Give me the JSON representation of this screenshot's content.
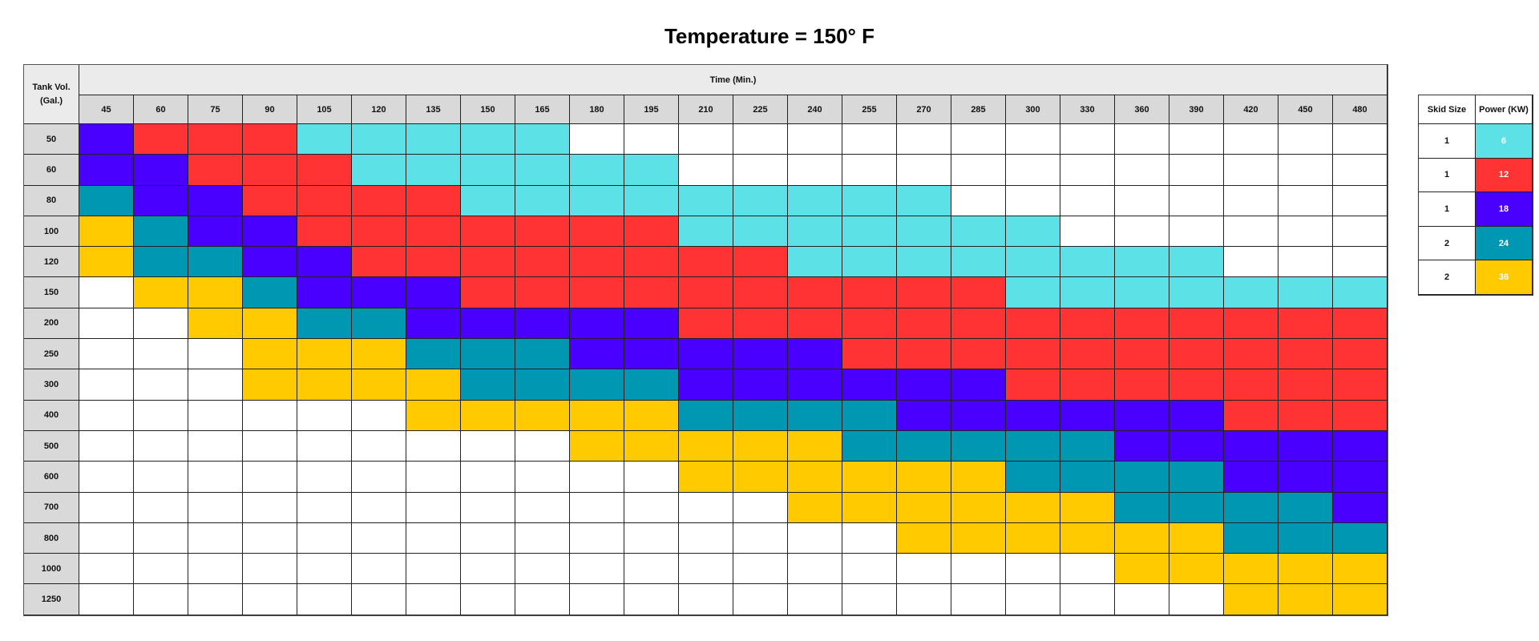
{
  "chart_data": {
    "type": "heatmap",
    "title": "Temperature = 150° F",
    "row_header": [
      "Tank Vol.",
      "(Gal.)"
    ],
    "col_header": "Time (Min.)",
    "columns": [
      45,
      60,
      75,
      90,
      105,
      120,
      135,
      150,
      165,
      180,
      195,
      210,
      225,
      240,
      255,
      270,
      285,
      300,
      330,
      360,
      390,
      420,
      450,
      480
    ],
    "rows": [
      {
        "tank": 50,
        "power_kw": [
          18,
          12,
          12,
          12,
          6,
          6,
          6,
          6,
          6,
          0,
          0,
          0,
          0,
          0,
          0,
          0,
          0,
          0,
          0,
          0,
          0,
          0,
          0,
          0
        ]
      },
      {
        "tank": 60,
        "power_kw": [
          18,
          18,
          12,
          12,
          12,
          6,
          6,
          6,
          6,
          6,
          6,
          0,
          0,
          0,
          0,
          0,
          0,
          0,
          0,
          0,
          0,
          0,
          0,
          0
        ]
      },
      {
        "tank": 80,
        "power_kw": [
          24,
          18,
          18,
          12,
          12,
          12,
          12,
          6,
          6,
          6,
          6,
          6,
          6,
          6,
          6,
          6,
          0,
          0,
          0,
          0,
          0,
          0,
          0,
          0
        ]
      },
      {
        "tank": 100,
        "power_kw": [
          36,
          24,
          18,
          18,
          12,
          12,
          12,
          12,
          12,
          12,
          12,
          6,
          6,
          6,
          6,
          6,
          6,
          6,
          0,
          0,
          0,
          0,
          0,
          0
        ]
      },
      {
        "tank": 120,
        "power_kw": [
          36,
          24,
          24,
          18,
          18,
          12,
          12,
          12,
          12,
          12,
          12,
          12,
          12,
          6,
          6,
          6,
          6,
          6,
          6,
          6,
          6,
          0,
          0,
          0
        ]
      },
      {
        "tank": 150,
        "power_kw": [
          0,
          36,
          36,
          24,
          18,
          18,
          18,
          12,
          12,
          12,
          12,
          12,
          12,
          12,
          12,
          12,
          12,
          6,
          6,
          6,
          6,
          6,
          6,
          6
        ]
      },
      {
        "tank": 200,
        "power_kw": [
          0,
          0,
          36,
          36,
          24,
          24,
          18,
          18,
          18,
          18,
          18,
          12,
          12,
          12,
          12,
          12,
          12,
          12,
          12,
          12,
          12,
          12,
          12,
          12
        ]
      },
      {
        "tank": 250,
        "power_kw": [
          0,
          0,
          0,
          36,
          36,
          36,
          24,
          24,
          24,
          18,
          18,
          18,
          18,
          18,
          12,
          12,
          12,
          12,
          12,
          12,
          12,
          12,
          12,
          12
        ]
      },
      {
        "tank": 300,
        "power_kw": [
          0,
          0,
          0,
          36,
          36,
          36,
          36,
          24,
          24,
          24,
          24,
          18,
          18,
          18,
          18,
          18,
          18,
          12,
          12,
          12,
          12,
          12,
          12,
          12
        ]
      },
      {
        "tank": 400,
        "power_kw": [
          0,
          0,
          0,
          0,
          0,
          0,
          36,
          36,
          36,
          36,
          36,
          24,
          24,
          24,
          24,
          18,
          18,
          18,
          18,
          18,
          18,
          12,
          12,
          12
        ]
      },
      {
        "tank": 500,
        "power_kw": [
          0,
          0,
          0,
          0,
          0,
          0,
          0,
          0,
          0,
          36,
          36,
          36,
          36,
          36,
          24,
          24,
          24,
          24,
          24,
          18,
          18,
          18,
          18,
          18
        ]
      },
      {
        "tank": 600,
        "power_kw": [
          0,
          0,
          0,
          0,
          0,
          0,
          0,
          0,
          0,
          0,
          0,
          36,
          36,
          36,
          36,
          36,
          36,
          24,
          24,
          24,
          24,
          18,
          18,
          18
        ]
      },
      {
        "tank": 700,
        "power_kw": [
          0,
          0,
          0,
          0,
          0,
          0,
          0,
          0,
          0,
          0,
          0,
          0,
          0,
          36,
          36,
          36,
          36,
          36,
          36,
          24,
          24,
          24,
          24,
          18
        ]
      },
      {
        "tank": 800,
        "power_kw": [
          0,
          0,
          0,
          0,
          0,
          0,
          0,
          0,
          0,
          0,
          0,
          0,
          0,
          0,
          0,
          36,
          36,
          36,
          36,
          36,
          36,
          24,
          24,
          24
        ]
      },
      {
        "tank": 1000,
        "power_kw": [
          0,
          0,
          0,
          0,
          0,
          0,
          0,
          0,
          0,
          0,
          0,
          0,
          0,
          0,
          0,
          0,
          0,
          0,
          0,
          36,
          36,
          36,
          36,
          36
        ]
      },
      {
        "tank": 1250,
        "power_kw": [
          0,
          0,
          0,
          0,
          0,
          0,
          0,
          0,
          0,
          0,
          0,
          0,
          0,
          0,
          0,
          0,
          0,
          0,
          0,
          0,
          0,
          36,
          36,
          36
        ]
      }
    ],
    "legend": {
      "headers": [
        "Skid Size",
        "Power (KW)"
      ],
      "entries": [
        {
          "skid": "1",
          "power": "6",
          "color": "#5CE1E6"
        },
        {
          "skid": "1",
          "power": "12",
          "color": "#FF3333"
        },
        {
          "skid": "1",
          "power": "18",
          "color": "#4A00FF"
        },
        {
          "skid": "2",
          "power": "24",
          "color": "#0097B2"
        },
        {
          "skid": "2",
          "power": "36",
          "color": "#FFCB00"
        }
      ]
    },
    "empty_color": "#FFFFFF"
  }
}
